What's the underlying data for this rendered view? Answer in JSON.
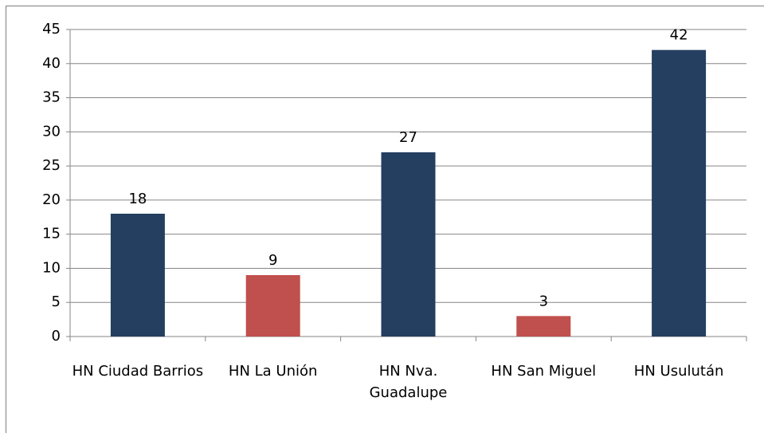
{
  "chart_data": {
    "type": "bar",
    "categories": [
      "HN Ciudad Barrios",
      "HN La Unión",
      "HN Nva. Guadalupe",
      "HN San Miguel",
      "HN Usulután"
    ],
    "values": [
      18,
      9,
      27,
      3,
      42
    ],
    "colors": [
      "#243f60",
      "#c0504d",
      "#243f60",
      "#c0504d",
      "#243f60"
    ],
    "ylim": [
      0,
      45
    ],
    "yticks": [
      0,
      5,
      10,
      15,
      20,
      25,
      30,
      35,
      40,
      45
    ],
    "grid": true
  }
}
